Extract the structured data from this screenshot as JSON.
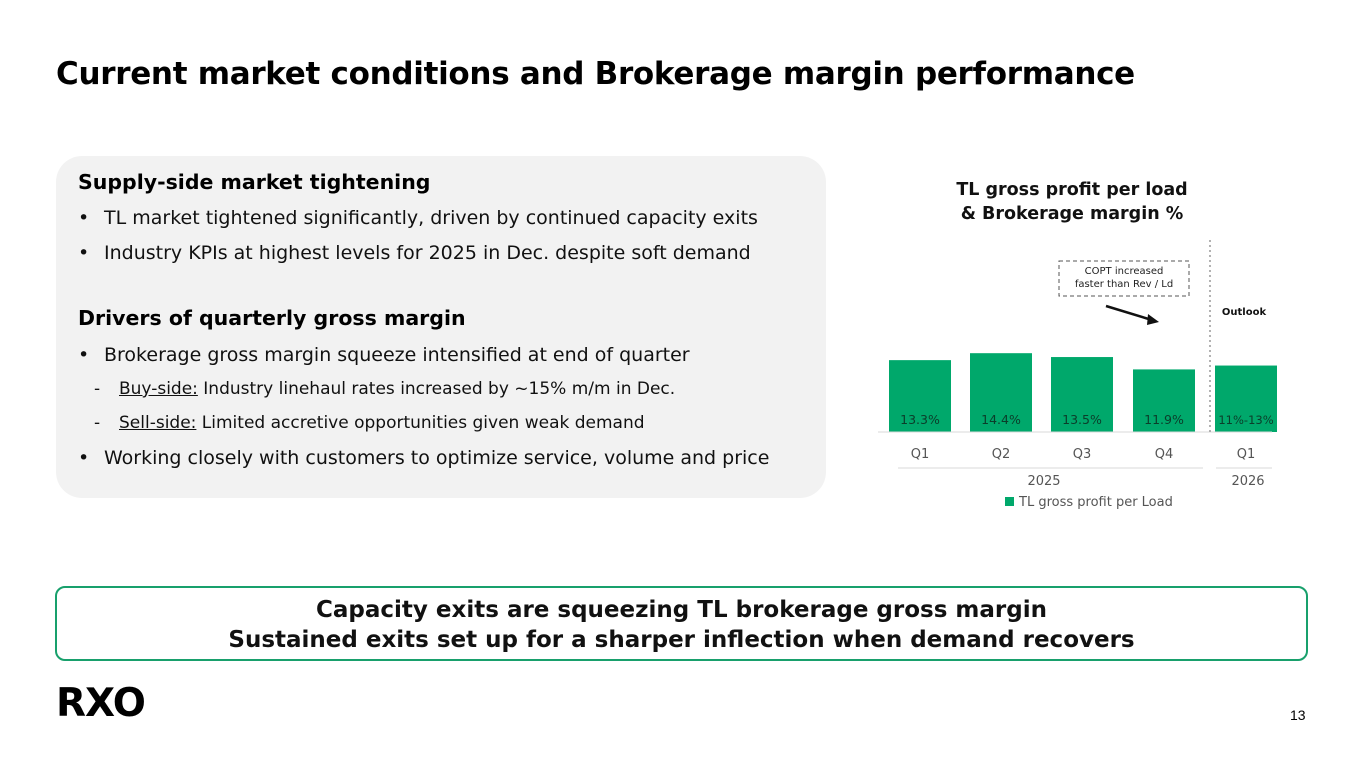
{
  "slide": {
    "title": "Current market conditions and Brokerage margin performance",
    "page_number": "13",
    "logo_text": "RXO"
  },
  "supply": {
    "heading": "Supply-side market tightening",
    "bullets": [
      "TL market tightened significantly, driven by continued capacity exits",
      "Industry KPIs at highest levels for 2025 in Dec. despite soft demand"
    ]
  },
  "drivers": {
    "heading": "Drivers of quarterly gross margin",
    "bullet1": "Brokerage gross margin squeeze intensified at end of quarter",
    "buy_label": "Buy-side:",
    "buy_text": " Industry linehaul rates increased by ~15% m/m in Dec.",
    "sell_label": "Sell-side:",
    "sell_text": " Limited accretive opportunities given weak demand",
    "bullet2": "Working closely with customers to optimize service, volume and price"
  },
  "markers": {
    "bullet": "•",
    "dash": "-"
  },
  "bottom": {
    "line1": "Capacity exits are squeezing TL brokerage gross margin",
    "line2": "Sustained exits set up for a sharper inflection when demand recovers"
  },
  "colors": {
    "bar": "#00a86b",
    "border": "#18a06c"
  },
  "chart_data": {
    "type": "bar",
    "title_line1": "TL gross profit per load",
    "title_line2": "& Brokerage margin %",
    "categories": [
      "Q1",
      "Q2",
      "Q3",
      "Q4",
      "Q1"
    ],
    "values": [
      93,
      102,
      97,
      81,
      86
    ],
    "value_unit": "relative index (no axis shown)",
    "ylim": [
      0,
      110
    ],
    "margin_labels": [
      "13.3%",
      "14.4%",
      "13.5%",
      "11.9%",
      "11%-13%"
    ],
    "groups": [
      {
        "label": "2025",
        "categories": [
          "Q1",
          "Q2",
          "Q3",
          "Q4"
        ]
      },
      {
        "label": "2026",
        "categories": [
          "Q1"
        ]
      }
    ],
    "outlook_label": "Outlook",
    "annotation_line1": "COPT increased",
    "annotation_line2": "faster than Rev / Ld",
    "legend": [
      "TL gross profit per Load"
    ],
    "legend_position": "bottom",
    "grid": false
  }
}
